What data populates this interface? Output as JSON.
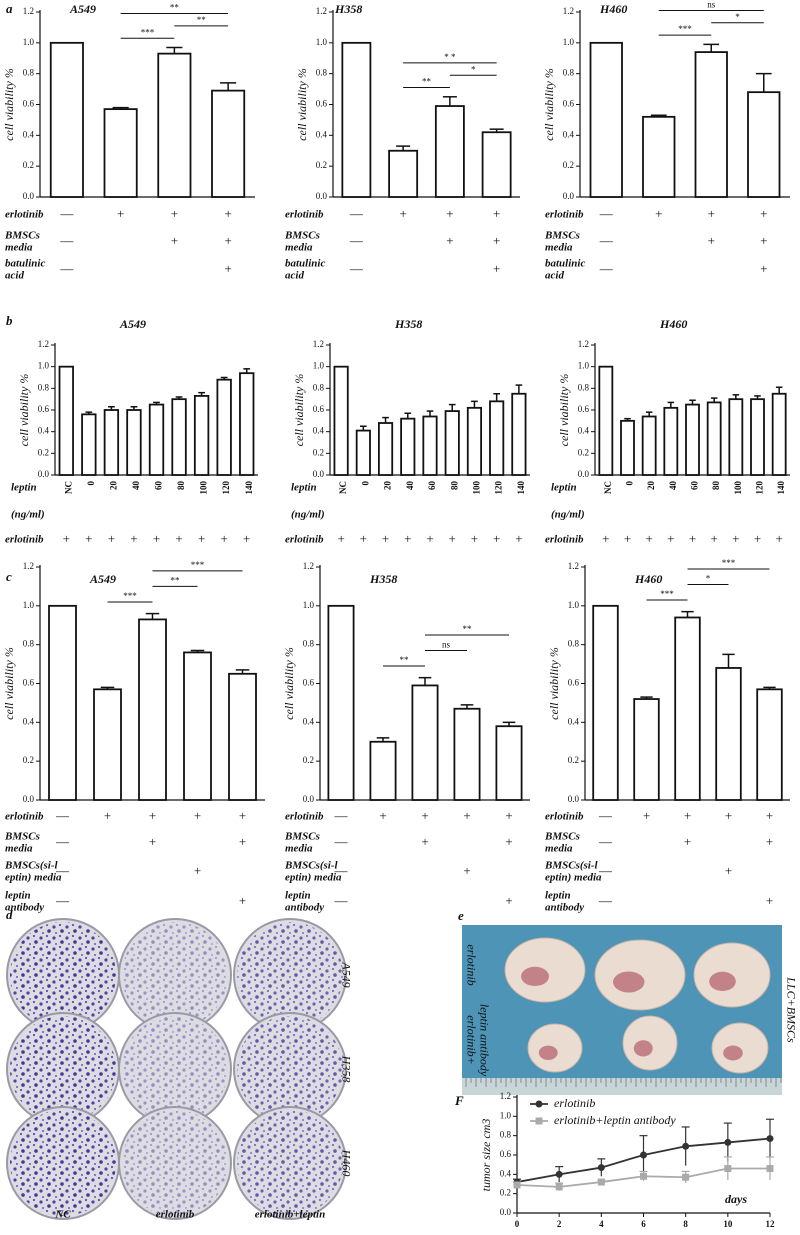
{
  "chart_data": [
    {
      "type": "bar",
      "panel": "a",
      "title": "A549",
      "ylabel": "cell viability %",
      "color": "#ffffff",
      "values": [
        1.0,
        0.57,
        0.93,
        0.69
      ],
      "errors": [
        null,
        0.01,
        0.04,
        0.05
      ],
      "ylim": [
        0,
        1.2
      ],
      "yticks": [
        {
          "value": 0,
          "label": "0.0"
        },
        0.2,
        0.4,
        0.6,
        0.8,
        {
          "value": 1,
          "label": "1.0"
        },
        1.2
      ],
      "significance": [
        {
          "between": [
            1,
            2
          ],
          "label": "***"
        },
        {
          "between": [
            2,
            3
          ],
          "label": "**"
        },
        {
          "between": [
            1,
            3
          ],
          "label": "**"
        }
      ],
      "conditions": [
        {
          "name": [
            "erlotinib"
          ],
          "marks": [
            "—",
            "+",
            "+",
            "+"
          ]
        },
        {
          "name": [
            "BMSCs",
            "media"
          ],
          "marks": [
            "—",
            null,
            "+",
            "+"
          ]
        },
        {
          "name": [
            "batulinic",
            "acid"
          ],
          "marks": [
            "—",
            null,
            null,
            "+"
          ]
        }
      ]
    },
    {
      "type": "bar",
      "title": "H358",
      "ylabel": "cell viability %",
      "color": "#ffffff",
      "values": [
        1.0,
        0.3,
        0.59,
        0.42
      ],
      "errors": [
        null,
        0.03,
        0.06,
        0.02
      ],
      "ylim": [
        0,
        1.2
      ],
      "yticks": [
        {
          "value": 0,
          "label": "0.0"
        },
        0.2,
        0.4,
        0.6,
        0.8,
        {
          "value": 1,
          "label": "1.0"
        },
        1.2
      ],
      "significance": [
        {
          "between": [
            1,
            2
          ],
          "label": "**"
        },
        {
          "between": [
            2,
            3
          ],
          "label": "*"
        },
        {
          "between": [
            1,
            3
          ],
          "label": "* *"
        }
      ],
      "conditions": [
        {
          "name": [
            "erlotinib"
          ],
          "marks": [
            "—",
            "+",
            "+",
            "+"
          ]
        },
        {
          "name": [
            "BMSCs",
            "media"
          ],
          "marks": [
            "—",
            null,
            "+",
            "+"
          ]
        },
        {
          "name": [
            "batulinic",
            "acid"
          ],
          "marks": [
            "—",
            null,
            null,
            "+"
          ]
        }
      ]
    },
    {
      "type": "bar",
      "title": "H460",
      "ylabel": "cell viability %",
      "color": "#ffffff",
      "values": [
        1.0,
        0.52,
        0.94,
        0.68
      ],
      "errors": [
        null,
        0.01,
        0.05,
        0.12
      ],
      "ylim": [
        0,
        1.2
      ],
      "yticks": [
        {
          "value": 0,
          "label": "0.0"
        },
        0.2,
        0.4,
        0.6,
        0.8,
        {
          "value": 1,
          "label": "1.0"
        },
        1.2
      ],
      "significance": [
        {
          "between": [
            1,
            2
          ],
          "label": "***"
        },
        {
          "between": [
            2,
            3
          ],
          "label": "*"
        },
        {
          "between": [
            1,
            3
          ],
          "label": "ns"
        }
      ],
      "conditions": [
        {
          "name": [
            "erlotinib"
          ],
          "marks": [
            "—",
            "+",
            "+",
            "+"
          ]
        },
        {
          "name": [
            "BMSCs",
            "media"
          ],
          "marks": [
            "—",
            null,
            "+",
            "+"
          ]
        },
        {
          "name": [
            "batulinic",
            "acid"
          ],
          "marks": [
            "—",
            null,
            null,
            "+"
          ]
        }
      ]
    },
    {
      "type": "bar",
      "panel": "b",
      "title": "A549",
      "ylabel": "cell viability %",
      "color": "#ffffff",
      "categories": [
        "NC",
        "0",
        "20",
        "40",
        "60",
        "80",
        "100",
        "120",
        "140"
      ],
      "values": [
        1.0,
        0.56,
        0.6,
        0.6,
        0.65,
        0.7,
        0.73,
        0.88,
        0.94
      ],
      "errors": [
        null,
        0.02,
        0.03,
        0.03,
        0.02,
        0.02,
        0.03,
        0.02,
        0.04
      ],
      "ylim": [
        0,
        1.2
      ],
      "yticks": [
        {
          "value": 0,
          "label": "0.0"
        },
        0.2,
        0.4,
        0.6,
        0.8,
        {
          "value": 1,
          "label": "1.0"
        },
        1.2
      ],
      "dose_label": [
        "leptin",
        "(ng/ml)"
      ],
      "conditions": [
        {
          "name": [
            "erlotinib"
          ],
          "marks": [
            "+",
            "+",
            "+",
            "+",
            "+",
            "+",
            "+",
            "+",
            "+"
          ]
        }
      ]
    },
    {
      "type": "bar",
      "title": "H358",
      "ylabel": "cell viability %",
      "color": "#ffffff",
      "categories": [
        "NC",
        "0",
        "20",
        "40",
        "60",
        "80",
        "100",
        "120",
        "140"
      ],
      "values": [
        1.0,
        0.41,
        0.48,
        0.52,
        0.54,
        0.59,
        0.62,
        0.68,
        0.75
      ],
      "errors": [
        null,
        0.04,
        0.05,
        0.05,
        0.05,
        0.06,
        0.06,
        0.07,
        0.08
      ],
      "ylim": [
        0,
        1.2
      ],
      "yticks": [
        {
          "value": 0,
          "label": "0.0"
        },
        0.2,
        0.4,
        0.6,
        0.8,
        {
          "value": 1,
          "label": "1.0"
        },
        1.2
      ],
      "dose_label": [
        "leptin",
        "(ng/ml)"
      ],
      "conditions": [
        {
          "name": [
            "erlotinib"
          ],
          "marks": [
            "+",
            "+",
            "+",
            "+",
            "+",
            "+",
            "+",
            "+",
            "+"
          ]
        }
      ]
    },
    {
      "type": "bar",
      "title": "H460",
      "ylabel": "cell viability %",
      "color": "#ffffff",
      "categories": [
        "NC",
        "0",
        "20",
        "40",
        "60",
        "80",
        "100",
        "120",
        "140"
      ],
      "values": [
        1.0,
        0.5,
        0.54,
        0.62,
        0.65,
        0.67,
        0.7,
        0.7,
        0.75
      ],
      "errors": [
        null,
        0.02,
        0.04,
        0.05,
        0.04,
        0.04,
        0.04,
        0.03,
        0.06
      ],
      "ylim": [
        0,
        1.2
      ],
      "yticks": [
        {
          "value": 0,
          "label": "0.0"
        },
        0.2,
        0.4,
        0.6,
        0.8,
        {
          "value": 1,
          "label": "1.0"
        },
        1.2
      ],
      "dose_label": [
        "leptin",
        "(ng/ml)"
      ],
      "conditions": [
        {
          "name": [
            "erlotinib"
          ],
          "marks": [
            "+",
            "+",
            "+",
            "+",
            "+",
            "+",
            "+",
            "+",
            "+"
          ]
        }
      ]
    },
    {
      "type": "bar",
      "panel": "c",
      "title": "A549",
      "ylabel": "cell viability %",
      "color": "#ffffff",
      "values": [
        1.0,
        0.57,
        0.93,
        0.76,
        0.65
      ],
      "errors": [
        null,
        0.01,
        0.03,
        0.01,
        0.02
      ],
      "ylim": [
        0,
        1.2
      ],
      "yticks": [
        {
          "value": 0,
          "label": "0.0"
        },
        0.2,
        0.4,
        0.6,
        0.8,
        {
          "value": 1,
          "label": "1.0"
        },
        1.2
      ],
      "significance": [
        {
          "between": [
            1,
            2
          ],
          "label": "***"
        },
        {
          "between": [
            2,
            3
          ],
          "label": "**"
        },
        {
          "between": [
            2,
            4
          ],
          "label": "***"
        }
      ],
      "conditions": [
        {
          "name": [
            "erlotinib"
          ],
          "marks": [
            "—",
            "+",
            "+",
            "+",
            "+"
          ]
        },
        {
          "name": [
            "BMSCs",
            "media"
          ],
          "marks": [
            "—",
            null,
            "+",
            null,
            "+"
          ]
        },
        {
          "name": [
            "BMSCs(si-l",
            "eptin) media"
          ],
          "marks": [
            "—",
            null,
            null,
            "+",
            null
          ]
        },
        {
          "name": [
            "leptin",
            "antibody"
          ],
          "marks": [
            "—",
            null,
            null,
            null,
            "+"
          ]
        }
      ]
    },
    {
      "type": "bar",
      "title": "H358",
      "ylabel": "cell viability %",
      "color": "#ffffff",
      "values": [
        1.0,
        0.3,
        0.59,
        0.47,
        0.38
      ],
      "errors": [
        null,
        0.02,
        0.04,
        0.02,
        0.02
      ],
      "ylim": [
        0,
        1.2
      ],
      "yticks": [
        {
          "value": 0,
          "label": "0.0"
        },
        0.2,
        0.4,
        0.6,
        0.8,
        {
          "value": 1,
          "label": "1.0"
        },
        1.2
      ],
      "significance": [
        {
          "between": [
            1,
            2
          ],
          "label": "**"
        },
        {
          "between": [
            2,
            3
          ],
          "label": "ns"
        },
        {
          "between": [
            2,
            4
          ],
          "label": "**"
        }
      ],
      "conditions": [
        {
          "name": [
            "erlotinib"
          ],
          "marks": [
            "—",
            "+",
            "+",
            "+",
            "+"
          ]
        },
        {
          "name": [
            "BMSCs",
            "media"
          ],
          "marks": [
            "—",
            null,
            "+",
            null,
            "+"
          ]
        },
        {
          "name": [
            "BMSCs(si-l",
            "eptin) media"
          ],
          "marks": [
            "—",
            null,
            null,
            "+",
            null
          ]
        },
        {
          "name": [
            "leptin",
            "antibody"
          ],
          "marks": [
            "—",
            null,
            null,
            null,
            "+"
          ]
        }
      ]
    },
    {
      "type": "bar",
      "title": "H460",
      "ylabel": "cell viability %",
      "color": "#ffffff",
      "values": [
        1.0,
        0.52,
        0.94,
        0.68,
        0.57
      ],
      "errors": [
        null,
        0.01,
        0.03,
        0.07,
        0.01
      ],
      "ylim": [
        0,
        1.2
      ],
      "yticks": [
        {
          "value": 0,
          "label": "0.0"
        },
        0.2,
        0.4,
        0.6,
        0.8,
        {
          "value": 1,
          "label": "1.0"
        },
        1.2
      ],
      "significance": [
        {
          "between": [
            1,
            2
          ],
          "label": "***"
        },
        {
          "between": [
            2,
            3
          ],
          "label": "*"
        },
        {
          "between": [
            2,
            4
          ],
          "label": "***"
        }
      ],
      "conditions": [
        {
          "name": [
            "erlotinib"
          ],
          "marks": [
            "—",
            "+",
            "+",
            "+",
            "+"
          ]
        },
        {
          "name": [
            "BMSCs",
            "media"
          ],
          "marks": [
            "—",
            null,
            "+",
            null,
            "+"
          ]
        },
        {
          "name": [
            "BMSCs(si-l",
            "eptin) media"
          ],
          "marks": [
            "—",
            null,
            null,
            "+",
            null
          ]
        },
        {
          "name": [
            "leptin",
            "antibody"
          ],
          "marks": [
            "—",
            null,
            null,
            null,
            "+"
          ]
        }
      ]
    },
    {
      "type": "line",
      "panel": "F",
      "ylabel": "tumor size cm3",
      "xlabel": "days",
      "x": [
        0,
        2,
        4,
        6,
        8,
        10,
        12
      ],
      "xlim": [
        0,
        12
      ],
      "xticks": [
        0,
        2,
        4,
        6,
        8,
        10,
        12
      ],
      "ylim": [
        0,
        1.2
      ],
      "yticks": [
        {
          "value": 0,
          "label": "0.0"
        },
        0.2,
        0.4,
        0.6,
        0.8,
        {
          "value": 1,
          "label": "1.0"
        },
        1.2
      ],
      "series": [
        {
          "name": "erlotinib",
          "color": "#333333",
          "values": [
            0.32,
            0.4,
            0.47,
            0.6,
            0.69,
            0.73,
            0.77
          ],
          "errors": [
            0.03,
            0.08,
            0.09,
            0.2,
            0.2,
            0.2,
            0.2
          ]
        },
        {
          "name": "erlotinib+leptin antibody",
          "color": "#aaaaaa",
          "values": [
            0.29,
            0.27,
            0.32,
            0.38,
            0.37,
            0.46,
            0.46
          ],
          "errors": [
            0.03,
            0.04,
            0.02,
            0.05,
            0.06,
            0.12,
            0.12
          ]
        }
      ]
    }
  ],
  "colony_assay": {
    "panel": "d",
    "cell_lines": [
      "A549",
      "H358",
      "H460"
    ],
    "treatments": [
      "NC",
      "erlotinib",
      "erlotinib+leptin"
    ]
  },
  "xenograft": {
    "panel": "e",
    "groups": [
      [
        "erlotinib"
      ],
      [
        "leptin antibody",
        "erlotinib+"
      ]
    ],
    "model": "LLC+BMSCs"
  }
}
